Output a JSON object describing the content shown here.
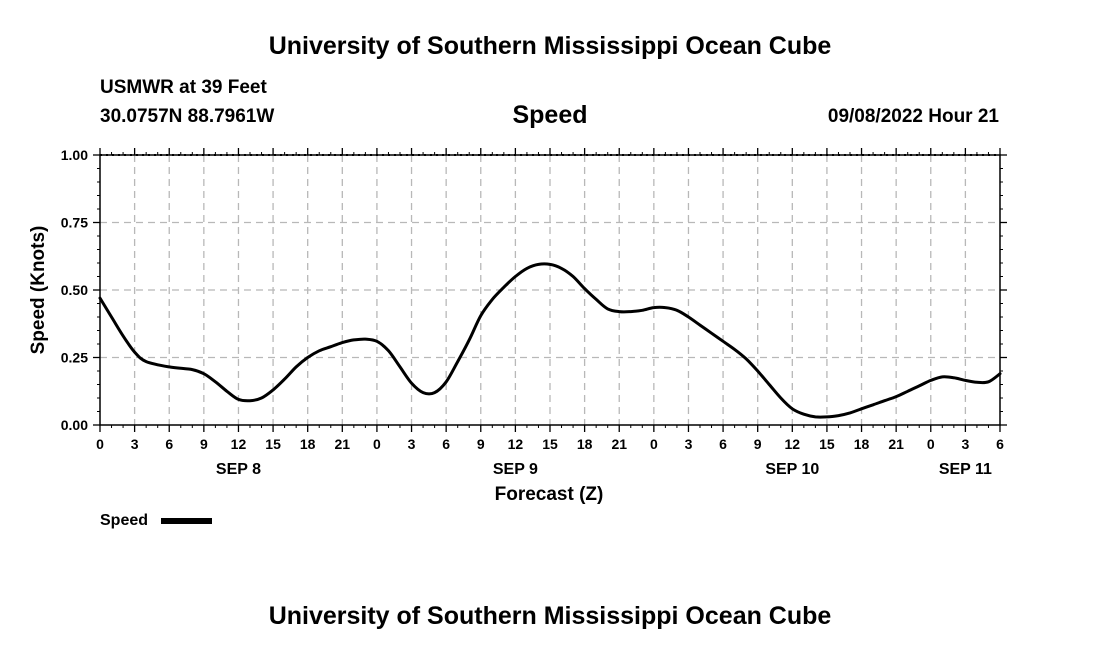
{
  "header": {
    "title": "University of Southern Mississippi Ocean Cube",
    "station": "USMWR at 39 Feet",
    "coords": "30.0757N  88.7961W",
    "variable": "Speed",
    "timestamp": "09/08/2022 Hour 21"
  },
  "footer": {
    "title": "University of Southern Mississippi Ocean Cube"
  },
  "chart_data": {
    "type": "line",
    "xlabel": "Forecast (Z)",
    "ylabel": "Speed (Knots)",
    "x_unit": "hours (Z) from 2022-09-08 00Z",
    "xlim": [
      0,
      78
    ],
    "ylim": [
      0,
      1
    ],
    "y_ticks": [
      "0.00",
      "0.25",
      "0.50",
      "0.75",
      "1.00"
    ],
    "x_tick_labels": [
      "0",
      "3",
      "6",
      "9",
      "12",
      "15",
      "18",
      "21",
      "0",
      "3",
      "6",
      "9",
      "12",
      "15",
      "18",
      "21",
      "0",
      "3",
      "6",
      "9",
      "12",
      "15",
      "18",
      "21",
      "0",
      "3",
      "6"
    ],
    "day_labels": [
      {
        "label": "SEP 8",
        "hour": 12
      },
      {
        "label": "SEP 9",
        "hour": 36
      },
      {
        "label": "SEP 10",
        "hour": 60
      },
      {
        "label": "SEP 11",
        "hour": 75
      }
    ],
    "grid": true,
    "legend_position": "bottom-left",
    "series": [
      {
        "name": "Speed",
        "color": "#000000",
        "x": [
          0,
          1,
          2,
          3,
          4,
          6,
          8,
          9,
          10,
          11,
          12,
          13,
          14,
          15,
          16,
          17,
          18,
          19,
          20,
          21,
          22,
          23,
          24,
          25,
          26,
          27,
          28,
          29,
          30,
          31,
          32,
          33,
          34,
          35,
          36,
          37,
          38,
          39,
          40,
          41,
          42,
          43,
          44,
          45,
          46,
          47,
          48,
          49,
          50,
          51,
          52,
          53,
          54,
          55,
          56,
          57,
          58,
          59,
          60,
          61,
          62,
          63,
          64,
          65,
          66,
          67,
          68,
          69,
          70,
          71,
          72,
          73,
          74,
          75,
          76,
          77,
          78
        ],
        "y": [
          0.47,
          0.4,
          0.33,
          0.27,
          0.235,
          0.215,
          0.205,
          0.19,
          0.16,
          0.125,
          0.095,
          0.09,
          0.1,
          0.13,
          0.17,
          0.215,
          0.25,
          0.275,
          0.29,
          0.305,
          0.315,
          0.318,
          0.31,
          0.275,
          0.215,
          0.155,
          0.12,
          0.12,
          0.16,
          0.235,
          0.315,
          0.405,
          0.465,
          0.51,
          0.55,
          0.58,
          0.595,
          0.595,
          0.58,
          0.55,
          0.505,
          0.465,
          0.43,
          0.42,
          0.42,
          0.425,
          0.435,
          0.435,
          0.425,
          0.4,
          0.37,
          0.34,
          0.31,
          0.28,
          0.245,
          0.2,
          0.15,
          0.1,
          0.06,
          0.04,
          0.03,
          0.03,
          0.035,
          0.045,
          0.06,
          0.075,
          0.09,
          0.105,
          0.125,
          0.145,
          0.165,
          0.178,
          0.175,
          0.165,
          0.158,
          0.16,
          0.19
        ]
      }
    ]
  }
}
